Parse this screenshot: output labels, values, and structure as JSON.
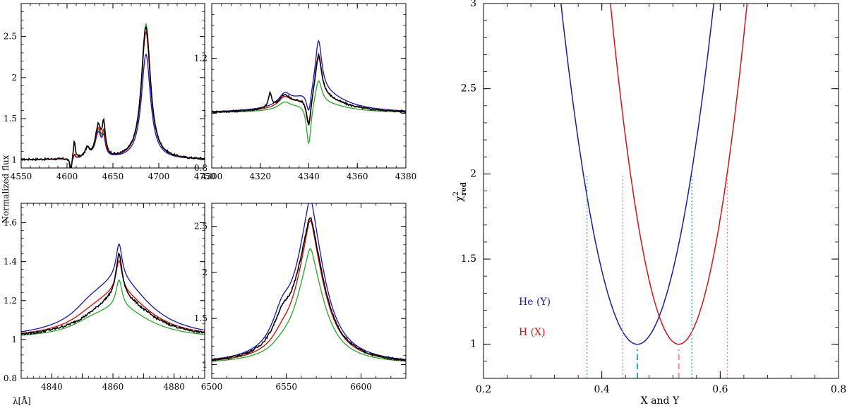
{
  "figure": {
    "left_ylabel": "Normalized flux",
    "left_xlabel": "λ[Å]"
  },
  "colors": {
    "observed": "#000000",
    "model_blue": "#1010cc",
    "model_red": "#dd0000",
    "model_green": "#22aa22",
    "he_curve": "#1a1aaa",
    "h_curve": "#dd1111",
    "he_marker": "#20b2c8",
    "h_marker": "#f08a8a"
  },
  "chart_data": [
    {
      "id": "heII4686",
      "type": "line",
      "xlim": [
        4550,
        4750
      ],
      "ylim": [
        0.9,
        2.9
      ],
      "xticks": [
        4550,
        4600,
        4650,
        4700,
        4750
      ],
      "xtick_labels": [
        "4550",
        "4600",
        "4650",
        "4700",
        "4750"
      ],
      "yticks": [
        1,
        1.5,
        2,
        2.5
      ],
      "ytick_labels": [
        "1",
        "1.5",
        "2",
        "2.5"
      ],
      "show_xticklabels": true,
      "continuum": 1.0,
      "features": [
        {
          "center": 4686,
          "width": 6,
          "amp": {
            "observed": 1.62,
            "model_blue": 1.28,
            "model_red": 1.55,
            "model_green": 1.65
          }
        },
        {
          "center": 4634,
          "width": 4,
          "amp": {
            "observed": 0.38,
            "model_blue": 0.3,
            "model_red": 0.34,
            "model_green": 0.32
          }
        },
        {
          "center": 4640,
          "width": 2,
          "amp": {
            "observed": 0.34,
            "model_blue": 0.2,
            "model_red": 0.24,
            "model_green": 0.22
          }
        },
        {
          "center": 4604,
          "width": 1.2,
          "amp": {
            "observed": -0.18,
            "model_blue": -0.12,
            "model_red": -0.14,
            "model_green": -0.12
          }
        },
        {
          "center": 4608,
          "width": 1.2,
          "amp": {
            "observed": 0.22,
            "model_blue": 0.05,
            "model_red": 0.06,
            "model_green": 0.05
          }
        },
        {
          "center": 4622,
          "width": 3,
          "amp": {
            "observed": 0.1,
            "model_blue": 0.12,
            "model_red": 0.12,
            "model_green": 0.12
          }
        }
      ]
    },
    {
      "id": "hgamma",
      "type": "line",
      "xlim": [
        4300,
        4380
      ],
      "ylim": [
        0.8,
        1.4
      ],
      "xticks": [
        4300,
        4320,
        4340,
        4360,
        4380
      ],
      "xtick_labels": [
        "4300",
        "4320",
        "4340",
        "4360",
        "4380"
      ],
      "yticks": [
        0.8,
        1,
        1.2
      ],
      "ytick_labels": [
        "0.8",
        "1",
        "1.2"
      ],
      "show_xticklabels": true,
      "continuum": 1.0,
      "features": [
        {
          "center": 4344,
          "width": 1.6,
          "amp": {
            "observed": 0.16,
            "model_blue": 0.19,
            "model_red": 0.15,
            "model_green": 0.09
          }
        },
        {
          "center": 4344,
          "width": 12,
          "amp": {
            "observed": 0.06,
            "model_blue": 0.08,
            "model_red": 0.06,
            "model_green": 0.04
          }
        },
        {
          "center": 4340,
          "width": 1.2,
          "amp": {
            "observed": -0.12,
            "model_blue": -0.09,
            "model_red": -0.11,
            "model_green": -0.16
          }
        },
        {
          "center": 4324,
          "width": 0.8,
          "amp": {
            "observed": 0.05,
            "model_blue": 0.0,
            "model_red": 0.0,
            "model_green": 0.0
          }
        },
        {
          "center": 4330,
          "width": 3,
          "amp": {
            "observed": 0.04,
            "model_blue": 0.04,
            "model_red": 0.035,
            "model_green": 0.025
          }
        }
      ]
    },
    {
      "id": "hbeta",
      "type": "line",
      "xlim": [
        4830,
        4890
      ],
      "ylim": [
        0.8,
        1.7
      ],
      "xticks": [
        4840,
        4850,
        4860,
        4870,
        4880
      ],
      "xtick_labels": [
        "4840",
        "",
        "4860",
        "",
        "4880"
      ],
      "yticks": [
        0.8,
        1,
        1.2,
        1.4,
        1.6
      ],
      "ytick_labels": [
        "0.8",
        "1",
        "1.2",
        "1.4",
        "1.6"
      ],
      "show_xticklabels": true,
      "continuum": 1.0,
      "features": [
        {
          "center": 4862,
          "width": 12,
          "amp": {
            "observed": 0.22,
            "model_blue": 0.3,
            "model_red": 0.24,
            "model_green": 0.16
          }
        },
        {
          "center": 4862,
          "width": 1.2,
          "amp": {
            "observed": 0.22,
            "model_blue": 0.18,
            "model_red": 0.16,
            "model_green": 0.14
          }
        },
        {
          "center": 4852,
          "width": 6,
          "amp": {
            "observed": 0.0,
            "model_blue": 0.04,
            "model_red": 0.02,
            "model_green": 0.02
          }
        }
      ]
    },
    {
      "id": "halpha",
      "type": "line",
      "xlim": [
        6500,
        6630
      ],
      "ylim": [
        0.85,
        2.75
      ],
      "xticks": [
        6500,
        6550,
        6600
      ],
      "xtick_labels": [
        "6500",
        "6550",
        "6600"
      ],
      "yticks": [
        1,
        1.5,
        2,
        2.5
      ],
      "ytick_labels": [
        "1",
        "1.5",
        "2",
        "2.5"
      ],
      "show_xticklabels": true,
      "continuum": 1.0,
      "features": [
        {
          "center": 6566,
          "width": 12,
          "amp": {
            "observed": 1.35,
            "model_blue": 1.5,
            "model_red": 1.3,
            "model_green": 1.05
          }
        },
        {
          "center": 6566,
          "width": 3,
          "amp": {
            "observed": 0.2,
            "model_blue": 0.25,
            "model_red": 0.25,
            "model_green": 0.2
          }
        },
        {
          "center": 6547,
          "width": 8,
          "amp": {
            "observed": 0.25,
            "model_blue": 0.3,
            "model_red": 0.1,
            "model_green": 0.05
          }
        }
      ]
    },
    {
      "id": "chi2",
      "type": "line",
      "xlabel": "X and Y",
      "ylabel_main": "χ",
      "ylabel_sup": "2",
      "ylabel_sub": "red",
      "xlim": [
        0.2,
        0.8
      ],
      "ylim": [
        0.8,
        3.0
      ],
      "xticks": [
        0.2,
        0.4,
        0.6,
        0.8
      ],
      "xtick_labels": [
        "0.2",
        "0.4",
        "0.6",
        "0.8"
      ],
      "yticks": [
        1,
        1.5,
        2,
        2.5,
        3
      ],
      "ytick_labels": [
        "1",
        "1.5",
        "2",
        "2.5",
        "3"
      ],
      "series": [
        {
          "name": "He (Y)",
          "min_x": 0.46,
          "min_y": 1.0,
          "curvature": 120,
          "color_key": "he_curve"
        },
        {
          "name": "H (X)",
          "min_x": 0.53,
          "min_y": 1.0,
          "curvature": 150,
          "color_key": "h_curve"
        }
      ],
      "markers": {
        "he_min_x": 0.46,
        "h_min_x": 0.53,
        "he_range": [
          0.375,
          0.552
        ],
        "h_range": [
          0.435,
          0.612
        ],
        "range_level": 2.0
      }
    }
  ]
}
